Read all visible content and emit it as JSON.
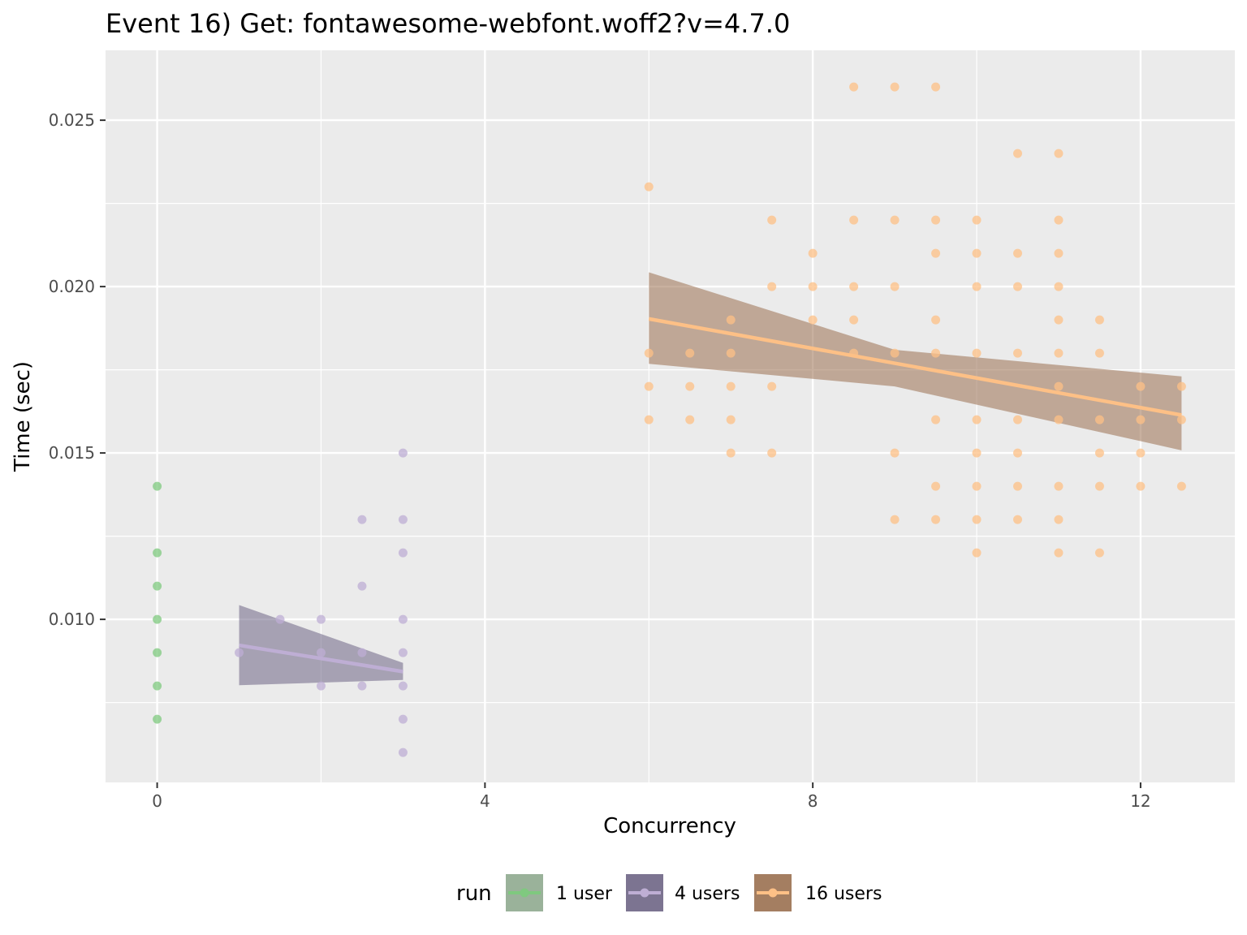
{
  "chart_data": {
    "type": "scatter",
    "title": "Event 16) Get: fontawesome-webfont.woff2?v=4.7.0",
    "xlabel": "Concurrency",
    "ylabel": "Time (sec)",
    "xlim": [
      -0.63,
      13.15
    ],
    "ylim": [
      0.0051,
      0.0271
    ],
    "x_ticks": [
      0,
      4,
      8,
      12
    ],
    "x_tick_labels": [
      "0",
      "4",
      "8",
      "12"
    ],
    "y_ticks": [
      0.01,
      0.015,
      0.02,
      0.025
    ],
    "y_tick_labels": [
      "0.010",
      "0.015",
      "0.020",
      "0.025"
    ],
    "grid": true,
    "legend": {
      "title": "run",
      "position": "bottom",
      "entries": [
        "1 user",
        "4 users",
        "16 users"
      ]
    },
    "series": [
      {
        "name": "1 user",
        "color": "#7fc97f",
        "band_color": "#8faa8f",
        "points": [
          [
            0,
            0.014
          ],
          [
            0,
            0.012
          ],
          [
            0,
            0.011
          ],
          [
            0,
            0.01
          ],
          [
            0,
            0.009
          ],
          [
            0,
            0.008
          ],
          [
            0,
            0.007
          ]
        ]
      },
      {
        "name": "4 users",
        "color": "#beaed4",
        "band_color": "#6e6585",
        "points": [
          [
            1,
            0.009
          ],
          [
            1.5,
            0.01
          ],
          [
            2,
            0.01
          ],
          [
            2,
            0.009
          ],
          [
            2,
            0.008
          ],
          [
            2.5,
            0.013
          ],
          [
            2.5,
            0.011
          ],
          [
            2.5,
            0.009
          ],
          [
            2.5,
            0.008
          ],
          [
            3,
            0.015
          ],
          [
            3,
            0.013
          ],
          [
            3,
            0.012
          ],
          [
            3,
            0.01
          ],
          [
            3,
            0.009
          ],
          [
            3,
            0.008
          ],
          [
            3,
            0.007
          ],
          [
            3,
            0.006
          ]
        ],
        "trend": {
          "x": [
            1,
            3
          ],
          "y": [
            0.00922,
            0.00843
          ]
        },
        "band": {
          "x": [
            1,
            3
          ],
          "upper": [
            0.01043,
            0.00869
          ],
          "lower": [
            0.00802,
            0.00818
          ]
        }
      },
      {
        "name": "16 users",
        "color": "#fdc086",
        "band_color": "#9a7050",
        "points": [
          [
            6,
            0.023
          ],
          [
            6,
            0.018
          ],
          [
            6,
            0.017
          ],
          [
            6,
            0.016
          ],
          [
            6.5,
            0.018
          ],
          [
            6.5,
            0.017
          ],
          [
            6.5,
            0.016
          ],
          [
            7,
            0.019
          ],
          [
            7,
            0.018
          ],
          [
            7,
            0.017
          ],
          [
            7,
            0.016
          ],
          [
            7,
            0.015
          ],
          [
            7.5,
            0.022
          ],
          [
            7.5,
            0.02
          ],
          [
            7.5,
            0.017
          ],
          [
            7.5,
            0.015
          ],
          [
            8,
            0.021
          ],
          [
            8,
            0.02
          ],
          [
            8,
            0.019
          ],
          [
            8.5,
            0.026
          ],
          [
            8.5,
            0.022
          ],
          [
            8.5,
            0.02
          ],
          [
            8.5,
            0.019
          ],
          [
            8.5,
            0.018
          ],
          [
            9,
            0.026
          ],
          [
            9,
            0.022
          ],
          [
            9,
            0.02
          ],
          [
            9,
            0.018
          ],
          [
            9,
            0.015
          ],
          [
            9,
            0.013
          ],
          [
            9.5,
            0.026
          ],
          [
            9.5,
            0.022
          ],
          [
            9.5,
            0.021
          ],
          [
            9.5,
            0.019
          ],
          [
            9.5,
            0.018
          ],
          [
            9.5,
            0.016
          ],
          [
            9.5,
            0.014
          ],
          [
            9.5,
            0.013
          ],
          [
            10,
            0.022
          ],
          [
            10,
            0.021
          ],
          [
            10,
            0.02
          ],
          [
            10,
            0.018
          ],
          [
            10,
            0.016
          ],
          [
            10,
            0.015
          ],
          [
            10,
            0.014
          ],
          [
            10,
            0.013
          ],
          [
            10,
            0.012
          ],
          [
            10.5,
            0.024
          ],
          [
            10.5,
            0.021
          ],
          [
            10.5,
            0.02
          ],
          [
            10.5,
            0.018
          ],
          [
            10.5,
            0.016
          ],
          [
            10.5,
            0.015
          ],
          [
            10.5,
            0.014
          ],
          [
            10.5,
            0.013
          ],
          [
            11,
            0.024
          ],
          [
            11,
            0.022
          ],
          [
            11,
            0.021
          ],
          [
            11,
            0.02
          ],
          [
            11,
            0.019
          ],
          [
            11,
            0.018
          ],
          [
            11,
            0.017
          ],
          [
            11,
            0.016
          ],
          [
            11,
            0.014
          ],
          [
            11,
            0.013
          ],
          [
            11,
            0.012
          ],
          [
            11.5,
            0.019
          ],
          [
            11.5,
            0.018
          ],
          [
            11.5,
            0.016
          ],
          [
            11.5,
            0.015
          ],
          [
            11.5,
            0.014
          ],
          [
            11.5,
            0.012
          ],
          [
            12,
            0.017
          ],
          [
            12,
            0.016
          ],
          [
            12,
            0.015
          ],
          [
            12,
            0.014
          ],
          [
            12.5,
            0.017
          ],
          [
            12.5,
            0.016
          ],
          [
            12.5,
            0.014
          ]
        ],
        "trend": {
          "x": [
            6,
            12.5
          ],
          "y": [
            0.01903,
            0.01614
          ]
        },
        "band": {
          "x": [
            6,
            9,
            12.5
          ],
          "upper": [
            0.02043,
            0.0181,
            0.0173
          ],
          "lower": [
            0.01768,
            0.017,
            0.01508
          ]
        }
      }
    ]
  }
}
